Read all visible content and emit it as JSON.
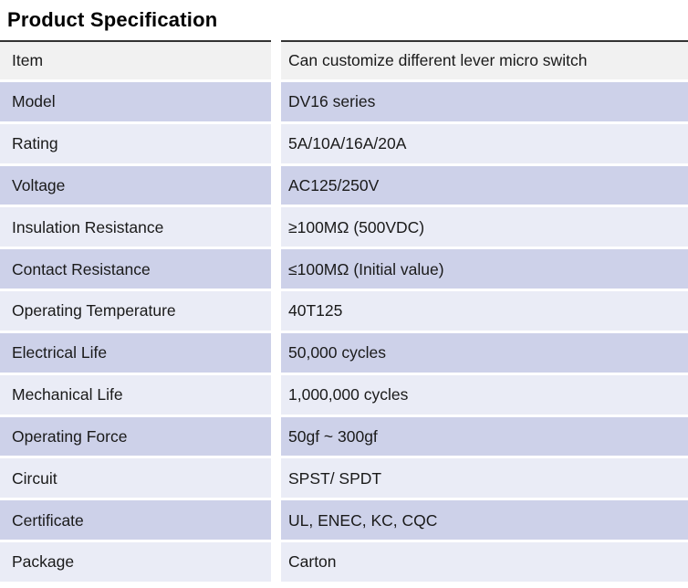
{
  "title": "Product Specification",
  "colors": {
    "row-gray": "#f1f1f1",
    "row-dark": "#cdd1e9",
    "row-light": "#eaecf6",
    "table-border": "#333333",
    "text": "#1a1a1a"
  },
  "table": {
    "rows": [
      {
        "label": "Item",
        "value": "Can customize different lever micro switch"
      },
      {
        "label": "Model",
        "value": "DV16 series"
      },
      {
        "label": "Rating",
        "value": "5A/10A/16A/20A"
      },
      {
        "label": "Voltage",
        "value": "AC125/250V"
      },
      {
        "label": "Insulation Resistance",
        "value": "≥100MΩ (500VDC)"
      },
      {
        "label": "Contact Resistance",
        "value": "≤100MΩ (Initial value)"
      },
      {
        "label": "Operating Temperature",
        "value": "40T125"
      },
      {
        "label": "Electrical Life",
        "value": "50,000 cycles"
      },
      {
        "label": "Mechanical Life",
        "value": "1,000,000 cycles"
      },
      {
        "label": "Operating Force",
        "value": "50gf ~ 300gf"
      },
      {
        "label": "Circuit",
        "value": "SPST/ SPDT"
      },
      {
        "label": "Certificate",
        "value": "UL, ENEC, KC, CQC"
      },
      {
        "label": "Package",
        "value": "Carton"
      }
    ]
  }
}
